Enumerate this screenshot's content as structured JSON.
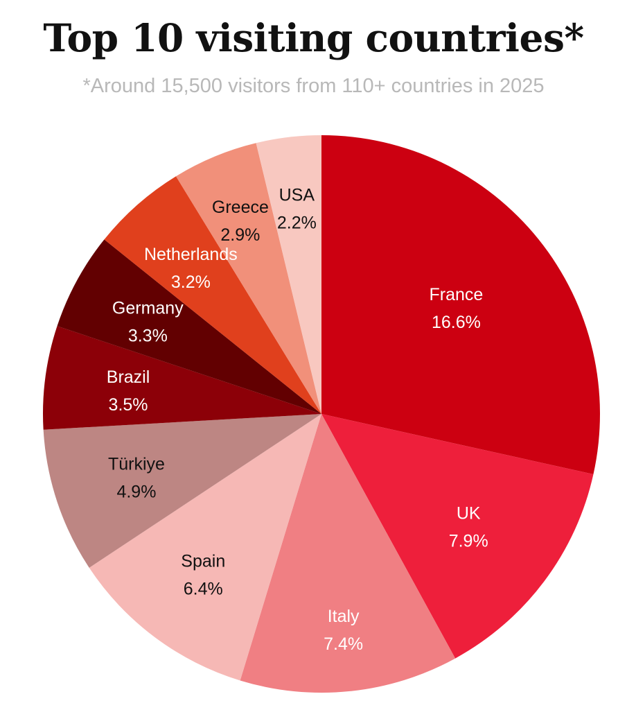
{
  "chart_data": {
    "type": "pie",
    "title": "Top 10 visiting countries*",
    "subtitle": "*Around 15,500 visitors from 110+ countries in 2025",
    "slices": [
      {
        "name": "France",
        "value": 16.6,
        "label": "16.6%",
        "color": "#cc0011",
        "text_color": "#ffffff"
      },
      {
        "name": "UK",
        "value": 7.9,
        "label": "7.9%",
        "color": "#ee1f3b",
        "text_color": "#ffffff"
      },
      {
        "name": "Italy",
        "value": 7.4,
        "label": "7.4%",
        "color": "#f07f83",
        "text_color": "#ffffff"
      },
      {
        "name": "Spain",
        "value": 6.4,
        "label": "6.4%",
        "color": "#f6b8b5",
        "text_color": "#111111"
      },
      {
        "name": "Türkiye",
        "value": 4.9,
        "label": "4.9%",
        "color": "#bd8683",
        "text_color": "#111111"
      },
      {
        "name": "Brazil",
        "value": 3.5,
        "label": "3.5%",
        "color": "#8c0008",
        "text_color": "#ffffff"
      },
      {
        "name": "Germany",
        "value": 3.3,
        "label": "3.3%",
        "color": "#620001",
        "text_color": "#ffffff"
      },
      {
        "name": "Netherlands",
        "value": 3.2,
        "label": "3.2%",
        "color": "#e0401d",
        "text_color": "#ffffff"
      },
      {
        "name": "Greece",
        "value": 2.9,
        "label": "2.9%",
        "color": "#f1907a",
        "text_color": "#111111"
      },
      {
        "name": "USA",
        "value": 2.2,
        "label": "2.2%",
        "color": "#f8c8c0",
        "text_color": "#111111"
      }
    ]
  }
}
